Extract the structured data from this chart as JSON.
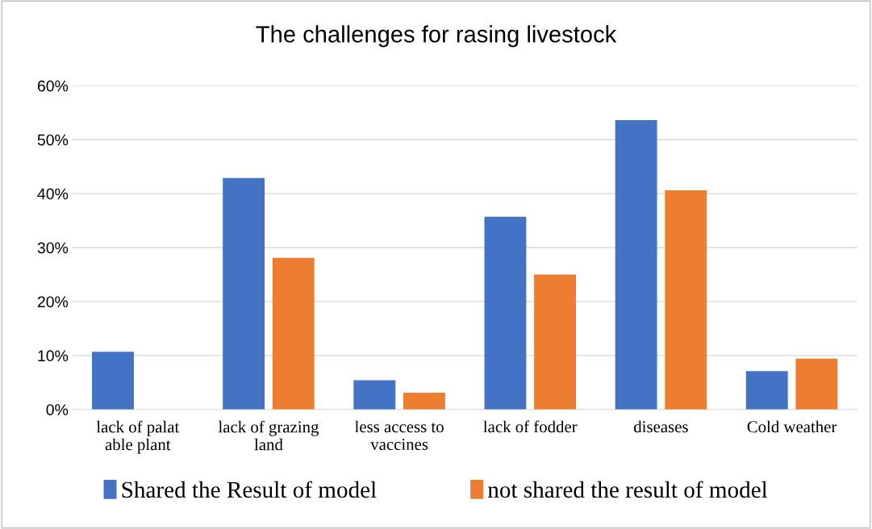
{
  "chart_data": {
    "type": "bar",
    "title": "The challenges for rasing livestock",
    "categories": [
      "lack of palat\nable plant",
      "lack of grazing\nland",
      "less access to\nvaccines",
      "lack of fodder",
      "diseases",
      "Cold weather"
    ],
    "series": [
      {
        "name": "Shared the Result of model",
        "color": "#4472c4",
        "values": [
          10.7,
          42.9,
          5.4,
          35.7,
          53.6,
          7.1
        ]
      },
      {
        "name": "not shared the result of model",
        "color": "#ed7d31",
        "values": [
          0,
          28.1,
          3.1,
          25.0,
          40.6,
          9.4
        ]
      }
    ],
    "ylim": [
      0,
      60
    ],
    "yticks": [
      {
        "value": 0,
        "label": "0%"
      },
      {
        "value": 10,
        "label": "10%"
      },
      {
        "value": 20,
        "label": "20%"
      },
      {
        "value": 30,
        "label": "30%"
      },
      {
        "value": 40,
        "label": "40%"
      },
      {
        "value": 50,
        "label": "50%"
      },
      {
        "value": 60,
        "label": "60%"
      }
    ],
    "grid": "y",
    "legend": "bottom"
  }
}
